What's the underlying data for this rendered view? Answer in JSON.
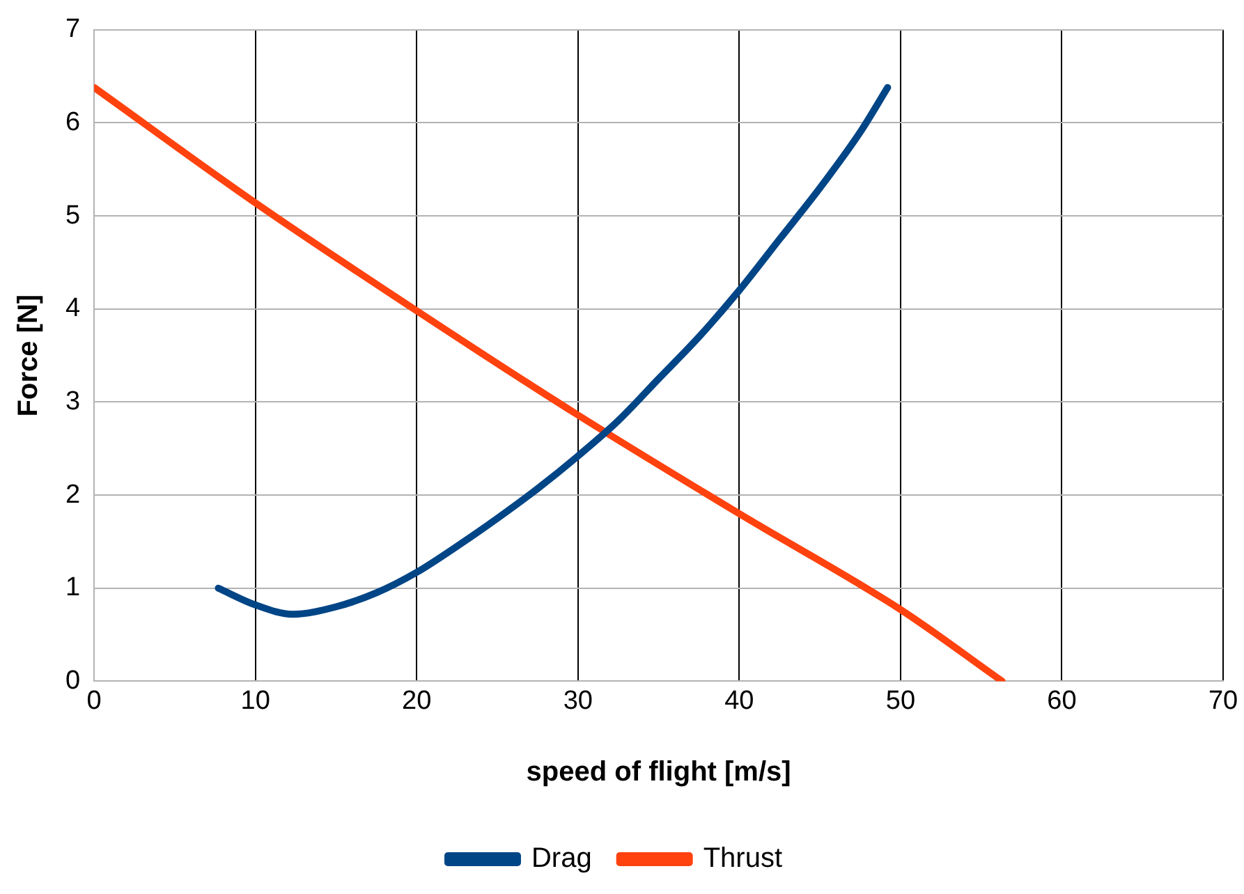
{
  "chart_data": {
    "type": "line",
    "xlabel": "speed of flight [m/s]",
    "ylabel": "Force [N]",
    "xlim": [
      0,
      70
    ],
    "xticks": [
      0,
      10,
      20,
      30,
      40,
      50,
      60,
      70
    ],
    "ylim": [
      0,
      7
    ],
    "yticks": [
      0,
      1,
      2,
      3,
      4,
      5,
      6,
      7
    ],
    "grid": true,
    "legend": "bottom",
    "marker": "none",
    "line_style": "solid",
    "series": [
      {
        "name": "Drag",
        "color": "#004586",
        "x": [
          7.7,
          10,
          12.3,
          15,
          17.5,
          20,
          22.5,
          25,
          27.5,
          30,
          32.5,
          35,
          37.5,
          40,
          42.5,
          45,
          47.5,
          49.2
        ],
        "values": [
          1.0,
          0.82,
          0.72,
          0.8,
          0.95,
          1.17,
          1.45,
          1.75,
          2.07,
          2.42,
          2.8,
          3.25,
          3.7,
          4.2,
          4.75,
          5.3,
          5.9,
          6.38
        ]
      },
      {
        "name": "Thrust",
        "color": "#ff420e",
        "x": [
          0,
          10,
          20,
          30,
          40,
          50,
          56.3
        ],
        "values": [
          6.38,
          5.14,
          3.98,
          2.86,
          1.8,
          0.77,
          0
        ]
      }
    ]
  }
}
